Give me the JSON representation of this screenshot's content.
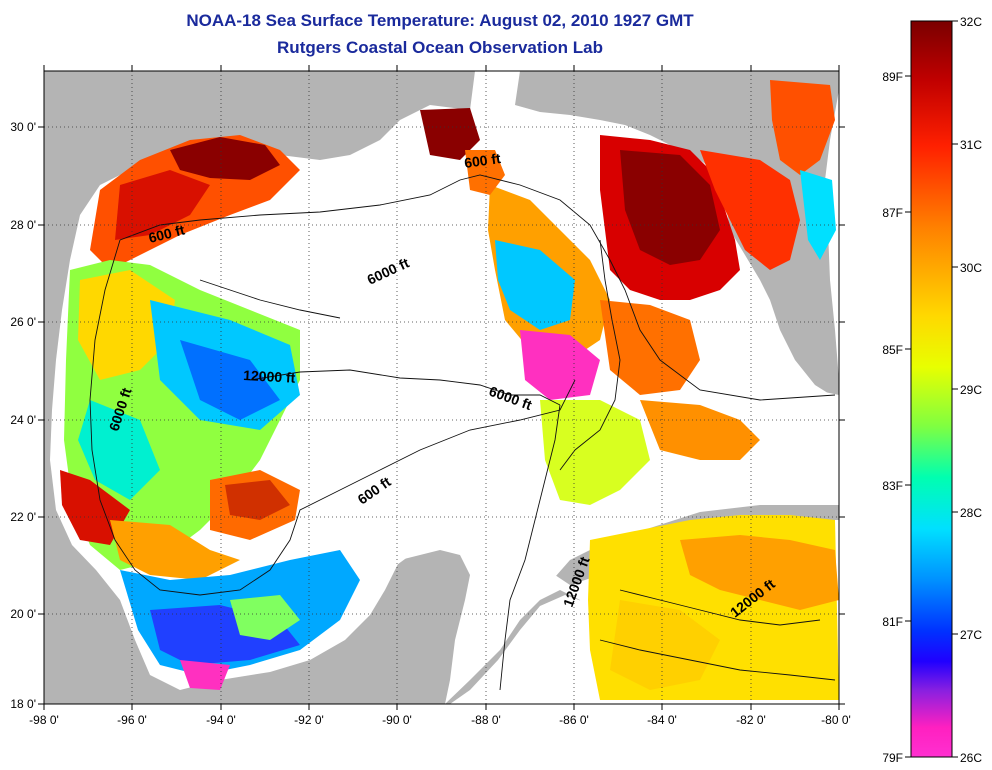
{
  "title": "NOAA-18 Sea Surface Temperature:  August 02, 2010 1927 GMT",
  "subtitle": "Rutgers Coastal Ocean Observation Lab",
  "map": {
    "lon_range": [
      -98,
      -80
    ],
    "lat_range": [
      18,
      31
    ],
    "lon_ticks": [
      "-98 0'",
      "-96 0'",
      "-94 0'",
      "-92 0'",
      "-90 0'",
      "-88 0'",
      "-86 0'",
      "-84 0'",
      "-82 0'",
      "-80 0'"
    ],
    "lat_ticks": [
      "18 0'",
      "20 0'",
      "22 0'",
      "24 0'",
      "26 0'",
      "28 0'",
      "30 0'"
    ],
    "land_color": "#b4b4b4",
    "no_data_color": "#ffffff",
    "contour_labels": [
      "600 ft",
      "600 ft",
      "6000 ft",
      "12000 ft",
      "6000 ft",
      "6000 ft",
      "600 ft",
      "12000 ft",
      "12000 ft"
    ]
  },
  "colorbar": {
    "celsius_labels": [
      "32C",
      "31C",
      "30C",
      "29C",
      "28C",
      "27C",
      "26C"
    ],
    "fahrenheit_labels": [
      "89F",
      "87F",
      "85F",
      "83F",
      "81F",
      "79F"
    ],
    "range_c": [
      26,
      32
    ],
    "colors": [
      "#7a0000",
      "#d40000",
      "#ff4000",
      "#ff9000",
      "#ffd800",
      "#e8ff00",
      "#80ff30",
      "#00ffb0",
      "#00e8ff",
      "#0090ff",
      "#0020ff",
      "#3010f0",
      "#a020e0",
      "#ff20c0",
      "#ff30d0"
    ]
  }
}
